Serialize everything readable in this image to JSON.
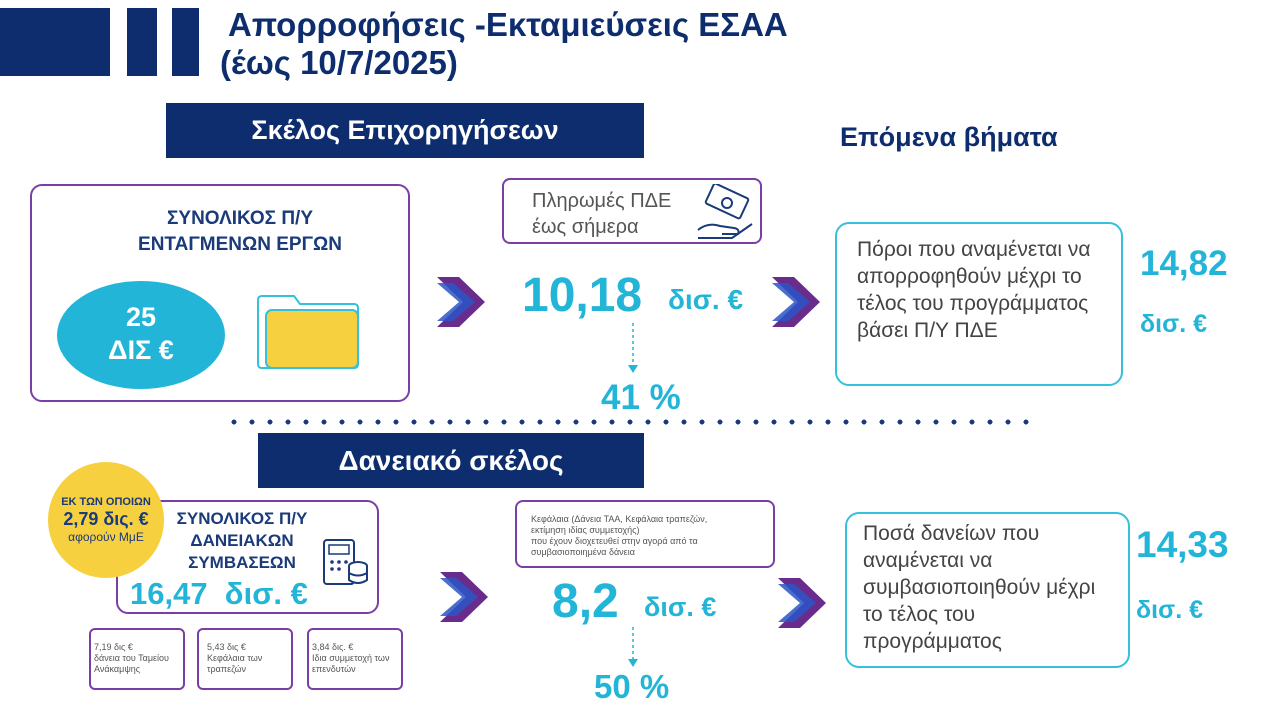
{
  "header": {
    "title_line1": "Απορροφήσεις -Εκταμιεύσεις ΕΣΑΑ",
    "title_line2": "(έως 10/7/2025)",
    "next_steps": "Επόμενα βήματα"
  },
  "grants": {
    "section_label": "Σκέλος Επιχορηγήσεων",
    "budget_title": "ΣΥΝΟΛΙΚΟΣ Π/Υ ΕΝΤΑΓΜΕΝΩΝ ΕΡΓΩΝ",
    "budget_value": "25",
    "budget_unit": "ΔΙΣ €",
    "payments_label_line1": "Πληρωμές ΠΔΕ",
    "payments_label_line2": "έως σήμερα",
    "payments_value": "10,18",
    "payments_unit": "δισ. €",
    "payments_percent": "41 %",
    "expected_text": "Πόροι που αναμένεται να απορροφηθούν μέχρι το τέλος του προγράμματος βάσει Π/Υ ΠΔΕ",
    "expected_value": "14,82",
    "expected_unit": "δισ. €"
  },
  "loans": {
    "section_label": "Δανειακό σκέλος",
    "sme_line1": "ΕΚ ΤΩΝ ΟΠΟΙΩΝ",
    "sme_line2": "2,79 δις. €",
    "sme_line3": "αφορούν ΜμΕ",
    "contracts_title": "ΣΥΝΟΛΙΚΟΣ Π/Υ ΔΑΝΕΙΑΚΩΝ ΣΥΜΒΑΣΕΩΝ",
    "contracts_value": "16,47  δισ. €",
    "breakdown": [
      {
        "amount": "7,19 δις €",
        "desc": "δάνεια του Ταμείου Ανάκαμψης"
      },
      {
        "amount": "5,43 δις €",
        "desc": "Κεφάλαια των τραπεζών"
      },
      {
        "amount": "3,84 δις. €",
        "desc": "Ιδια συμμετοχή των επενδυτών"
      }
    ],
    "channeled_line1": "Κεφάλαια (Δάνεια ΤΑΑ, Κεφάλαια τραπεζών,",
    "channeled_line2": "εκτίμηση ιδίας συμμετοχής)",
    "channeled_line3": "που έχουν διοχετευθεί στην αγορά από τα",
    "channeled_line4": "συμβασιοποιημένα δάνεια",
    "channeled_value": "8,2",
    "channeled_unit": "δισ. €",
    "channeled_percent": "50 %",
    "expected_text": "Ποσά δανείων που αναμένεται να συμβασιοποιηθούν μέχρι το τέλος του προγράμματος",
    "expected_value": "14,33",
    "expected_unit": "δισ. €"
  },
  "colors": {
    "navy": "#0e2d6e",
    "cyan": "#23b5d8",
    "purple": "#7a3fa6",
    "yellow": "#f6d03f"
  }
}
